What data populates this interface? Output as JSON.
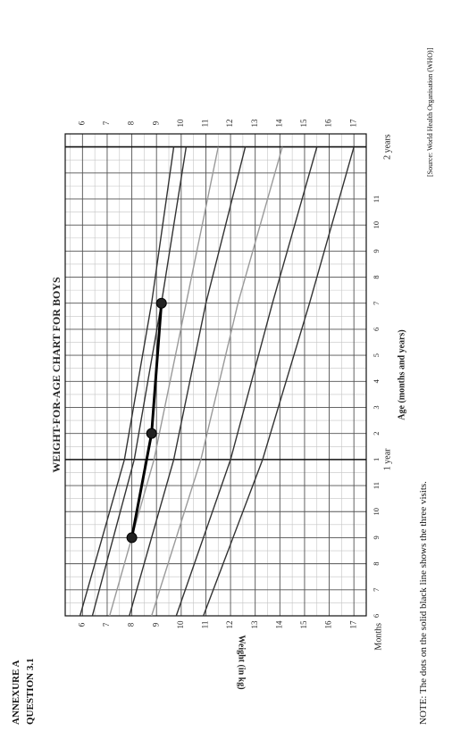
{
  "annexure": "ANNEXURE A",
  "question": "QUESTION 3.1",
  "note": "NOTE: The dots on the solid black line shows the three visits.",
  "source": "[Source: World Health Organisation (WHO)]",
  "chart_data": {
    "type": "line",
    "title": "WEIGHT-FOR-AGE CHART FOR BOYS",
    "xlabel": "Age (months and years)",
    "ylabel": "Weight  (in kg)",
    "x_axis_label_months": "Months",
    "x_ticks": [
      6,
      7,
      8,
      9,
      10,
      11,
      12,
      13,
      14,
      15,
      16,
      17,
      18,
      19,
      20,
      21,
      22,
      23,
      24
    ],
    "x_tick_labels": [
      "6",
      "7",
      "8",
      "9",
      "10",
      "11",
      "1",
      "2",
      "3",
      "4",
      "5",
      "6",
      "7",
      "8",
      "9",
      "10",
      "11",
      "",
      ""
    ],
    "year_labels": [
      {
        "x": 12,
        "text": "1 year"
      },
      {
        "x": 24,
        "text": "2 years"
      }
    ],
    "xlim": [
      6,
      24.5
    ],
    "ylim": [
      5.3,
      17.5
    ],
    "y_ticks": [
      6,
      7,
      8,
      9,
      10,
      11,
      12,
      13,
      14,
      15,
      16,
      17
    ],
    "grid": true,
    "reference_curves": [
      {
        "color": "#333333",
        "points": [
          [
            6,
            5.9
          ],
          [
            12,
            7.7
          ],
          [
            18,
            8.8
          ],
          [
            24,
            9.7
          ]
        ]
      },
      {
        "color": "#333333",
        "points": [
          [
            6,
            6.4
          ],
          [
            12,
            8.1
          ],
          [
            18,
            9.2
          ],
          [
            24,
            10.2
          ]
        ]
      },
      {
        "color": "#9a9a9a",
        "points": [
          [
            6,
            7.1
          ],
          [
            12,
            8.9
          ],
          [
            18,
            10.2
          ],
          [
            24,
            11.5
          ]
        ]
      },
      {
        "color": "#333333",
        "points": [
          [
            6,
            7.9
          ],
          [
            12,
            9.7
          ],
          [
            18,
            11.0
          ],
          [
            24,
            12.6
          ]
        ]
      },
      {
        "color": "#9a9a9a",
        "points": [
          [
            6,
            8.8
          ],
          [
            12,
            10.8
          ],
          [
            18,
            12.3
          ],
          [
            24,
            14.1
          ]
        ]
      },
      {
        "color": "#333333",
        "points": [
          [
            6,
            9.8
          ],
          [
            12,
            12.0
          ],
          [
            18,
            13.7
          ],
          [
            24,
            15.5
          ]
        ]
      },
      {
        "color": "#333333",
        "points": [
          [
            6,
            10.9
          ],
          [
            12,
            13.3
          ],
          [
            18,
            15.2
          ],
          [
            24,
            17.0
          ]
        ]
      }
    ],
    "visits": [
      {
        "x": 9,
        "y": 8.0
      },
      {
        "x": 13,
        "y": 8.8
      },
      {
        "x": 18,
        "y": 9.2
      }
    ]
  }
}
